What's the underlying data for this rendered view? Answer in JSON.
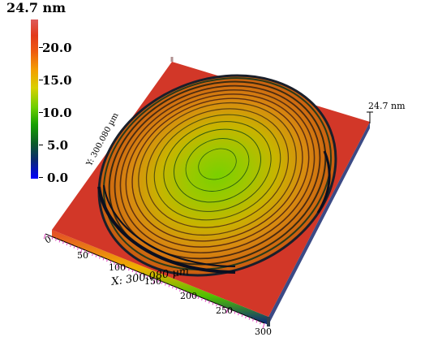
{
  "colorbar": {
    "max_label": "24.7 nm",
    "ticks": [
      "20.0",
      "15.0",
      "10.0",
      "5.0",
      "0.0"
    ]
  },
  "surface": {
    "z_max_label": "24.7 nm",
    "y_axis_label": "Y: 300.080 µm",
    "x_axis_label": "X: 300.080 µm",
    "x_ticks": [
      "0",
      "50",
      "100",
      "150",
      "200",
      "250",
      "300"
    ],
    "left_corner_label": "0"
  },
  "colors": {
    "background": "#ffffff",
    "substrate": "#d93a2a",
    "ring_dark": "#1a1f2a"
  }
}
